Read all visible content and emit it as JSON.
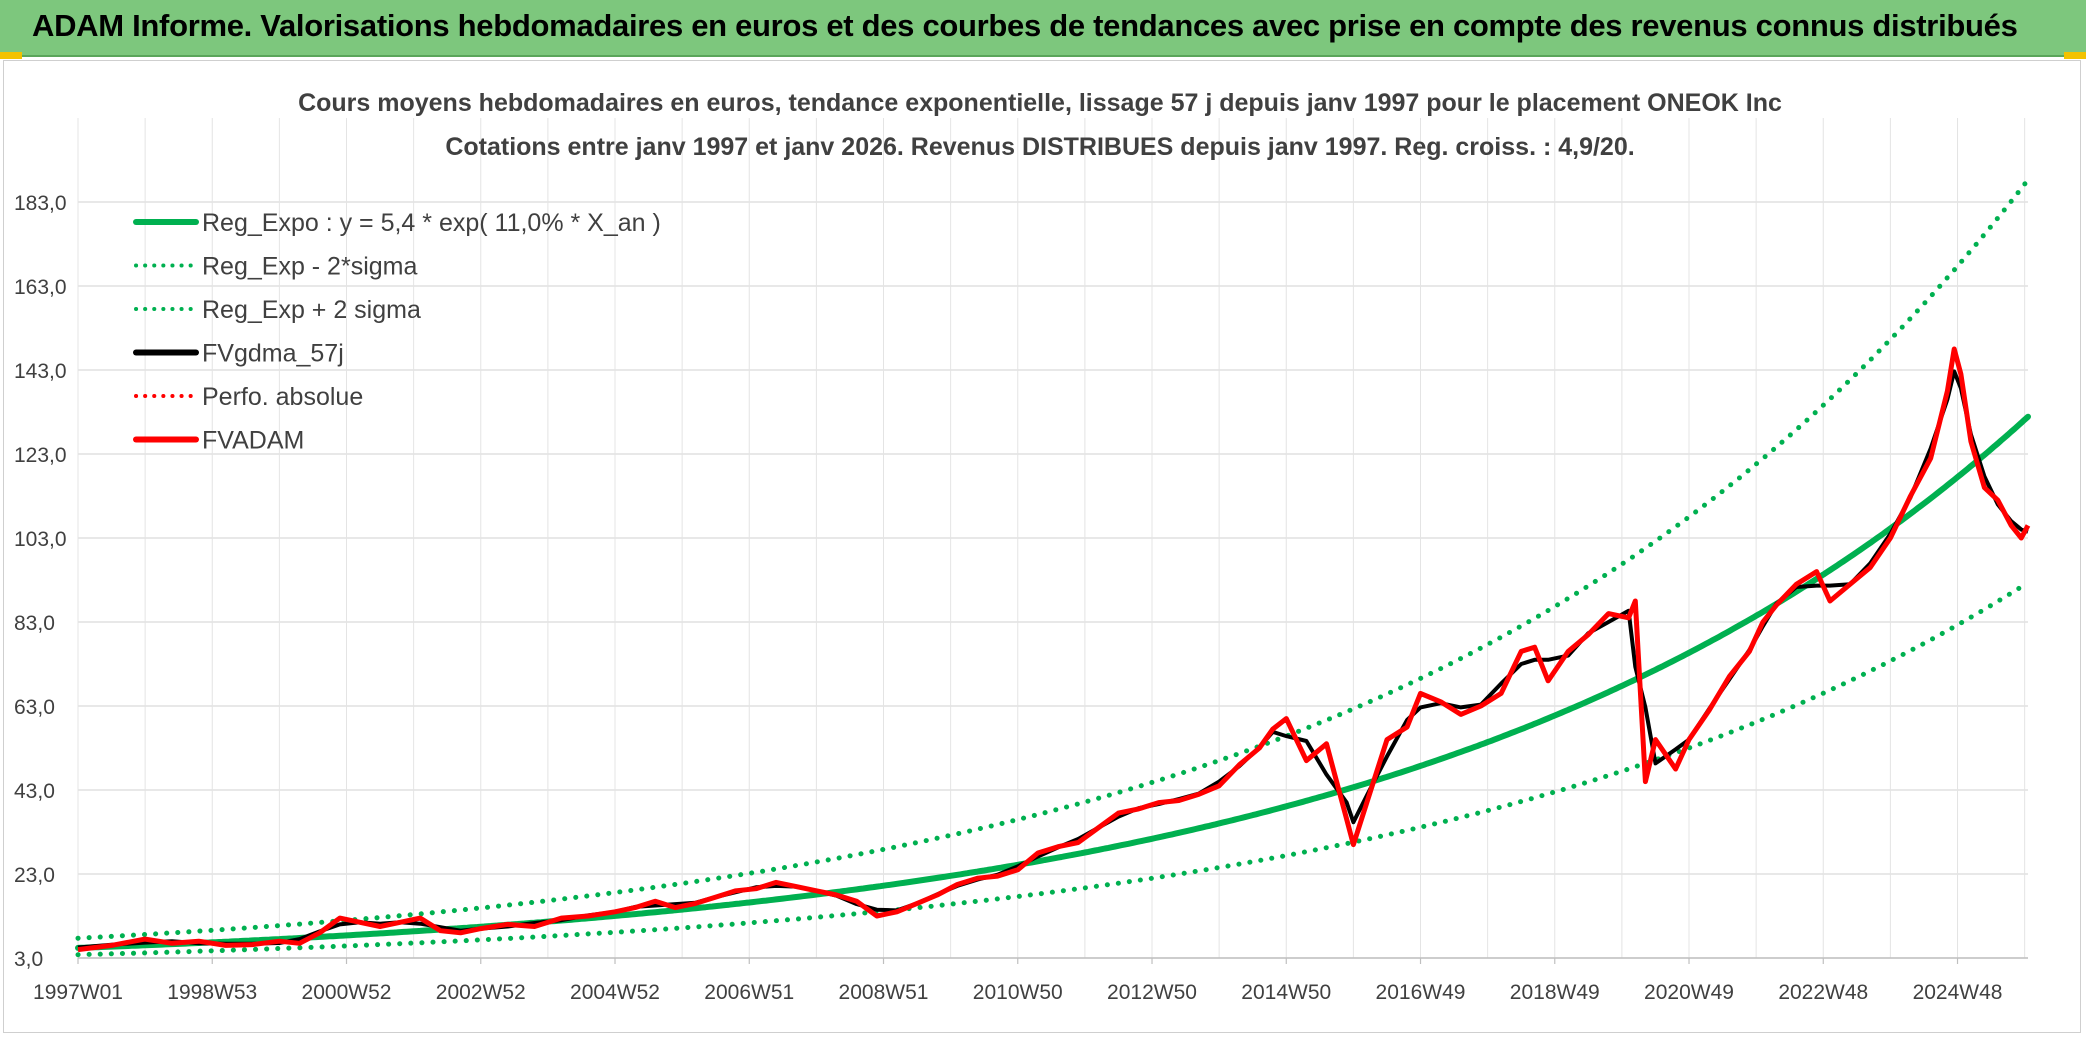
{
  "banner": {
    "title": "ADAM Informe. Valorisations hebdomadaires en euros et des courbes de tendances avec prise en compte des revenus connus distribués"
  },
  "chart_data": {
    "type": "line",
    "title": "Cours moyens hebdomadaires en euros, tendance exponentielle, lissage 57 j depuis janv 1997 pour le placement ONEOK Inc",
    "subtitle": "Cotations entre janv 1997 et janv 2026. Revenus DISTRIBUES depuis janv 1997. Reg. croiss. : 4,9/20.",
    "xlabel": "",
    "ylabel": "",
    "x_range": [
      1997.0,
      2026.05
    ],
    "ylim": [
      3.0,
      203.0
    ],
    "y_ticks": [
      3.0,
      23.0,
      43.0,
      63.0,
      83.0,
      103.0,
      123.0,
      143.0,
      163.0,
      183.0
    ],
    "y_tick_labels": [
      "3,0",
      "23,0",
      "43,0",
      "63,0",
      "83,0",
      "103,0",
      "123,0",
      "143,0",
      "163,0",
      "183,0"
    ],
    "x_ticks": [
      {
        "label": "1997W01",
        "x": 1997.0
      },
      {
        "label": "1998W53",
        "x": 1999.0
      },
      {
        "label": "2000W52",
        "x": 2001.0
      },
      {
        "label": "2002W52",
        "x": 2003.0
      },
      {
        "label": "2004W52",
        "x": 2005.0
      },
      {
        "label": "2006W51",
        "x": 2007.0
      },
      {
        "label": "2008W51",
        "x": 2009.0
      },
      {
        "label": "2010W50",
        "x": 2011.0
      },
      {
        "label": "2012W50",
        "x": 2013.0
      },
      {
        "label": "2014W50",
        "x": 2015.0
      },
      {
        "label": "2016W49",
        "x": 2017.0
      },
      {
        "label": "2018W49",
        "x": 2019.0
      },
      {
        "label": "2020W49",
        "x": 2021.0
      },
      {
        "label": "2022W48",
        "x": 2023.0
      },
      {
        "label": "2024W48",
        "x": 2025.0
      }
    ],
    "grid": true,
    "legend_position": "top-left",
    "regression": {
      "a": 5.4,
      "b": 0.11,
      "sigma": 0.178
    },
    "series": [
      {
        "name": "Reg_Expo : y = 5,4 * exp( 11,0% *  X_an )",
        "color": "#00b050",
        "style": "solid",
        "kind": "expo"
      },
      {
        "name": "Reg_Exp - 2*sigma",
        "color": "#00b050",
        "style": "dotted",
        "kind": "expo_low"
      },
      {
        "name": "Reg_Exp + 2 sigma",
        "color": "#00b050",
        "style": "dotted",
        "kind": "expo_high"
      },
      {
        "name": "FVgdma_57j",
        "color": "#000000",
        "style": "solid",
        "kind": "smooth"
      },
      {
        "name": "Perfo. absolue",
        "color": "#ff0000",
        "style": "dotted",
        "kind": "none"
      },
      {
        "name": "FVADAM",
        "color": "#ff0000",
        "style": "solid",
        "kind": "price",
        "x": [
          1997.0,
          1997.5,
          1998.0,
          1998.4,
          1998.8,
          1999.2,
          1999.6,
          2000.0,
          2000.3,
          2000.6,
          2000.9,
          2001.2,
          2001.5,
          2001.8,
          2002.1,
          2002.4,
          2002.7,
          2003.0,
          2003.4,
          2003.8,
          2004.2,
          2004.6,
          2005.0,
          2005.3,
          2005.6,
          2005.9,
          2006.2,
          2006.5,
          2006.8,
          2007.1,
          2007.4,
          2007.7,
          2008.0,
          2008.3,
          2008.6,
          2008.9,
          2009.2,
          2009.5,
          2009.8,
          2010.1,
          2010.4,
          2010.7,
          2011.0,
          2011.3,
          2011.6,
          2011.9,
          2012.2,
          2012.5,
          2012.8,
          2013.1,
          2013.4,
          2013.7,
          2014.0,
          2014.3,
          2014.6,
          2014.8,
          2015.0,
          2015.3,
          2015.6,
          2015.9,
          2016.0,
          2016.2,
          2016.5,
          2016.8,
          2017.0,
          2017.3,
          2017.6,
          2017.9,
          2018.2,
          2018.5,
          2018.7,
          2018.9,
          2019.2,
          2019.5,
          2019.8,
          2020.1,
          2020.2,
          2020.35,
          2020.5,
          2020.8,
          2021.0,
          2021.3,
          2021.6,
          2021.9,
          2022.1,
          2022.3,
          2022.6,
          2022.9,
          2023.1,
          2023.4,
          2023.7,
          2024.0,
          2024.3,
          2024.6,
          2024.85,
          2024.95,
          2025.05,
          2025.2,
          2025.4,
          2025.6,
          2025.8,
          2025.95,
          2026.05
        ],
        "values": [
          5.0,
          6.0,
          7.5,
          6.5,
          7.0,
          6.0,
          6.2,
          7.0,
          6.5,
          9.0,
          12.5,
          11.5,
          10.5,
          11.5,
          12.5,
          9.5,
          9.0,
          10.0,
          11.0,
          10.5,
          12.5,
          13.0,
          14.0,
          15.0,
          16.5,
          15.0,
          16.0,
          17.5,
          19.0,
          19.5,
          21.0,
          20.0,
          19.0,
          18.0,
          16.5,
          13.0,
          14.0,
          16.0,
          18.0,
          20.5,
          22.0,
          22.5,
          24.0,
          28.0,
          29.5,
          30.5,
          34.0,
          37.5,
          38.5,
          40.0,
          40.5,
          42.0,
          44.0,
          49.0,
          53.0,
          57.5,
          60.0,
          50.0,
          54.0,
          36.0,
          30.0,
          40.0,
          55.0,
          58.0,
          66.0,
          64.0,
          61.0,
          63.0,
          66.0,
          76.0,
          77.0,
          69.0,
          76.0,
          80.0,
          85.0,
          84.0,
          88.0,
          45.0,
          55.0,
          48.0,
          55.0,
          62.0,
          70.0,
          76.0,
          83.0,
          87.0,
          92.0,
          95.0,
          88.0,
          92.0,
          96.0,
          103.0,
          113.0,
          122.0,
          138.0,
          148.0,
          142.0,
          126.0,
          115.0,
          112.0,
          106.0,
          103.0,
          106.0
        ]
      }
    ]
  }
}
